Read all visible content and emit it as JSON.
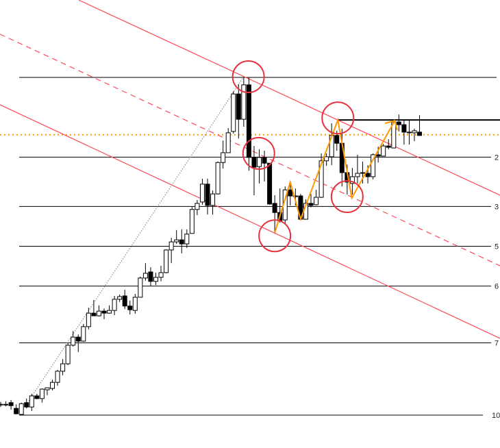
{
  "chart_data": {
    "type": "candlestick",
    "title": "",
    "price_range": [
      0,
      100
    ],
    "grid": false,
    "colors": {
      "bull_body": "#ffffff",
      "bear_body": "#000000",
      "outline": "#000000",
      "channel": "#ff4a5a",
      "zigzag": "#ff9900",
      "support": "#ff9900",
      "circle": "#e8323f",
      "trend": "#888888"
    },
    "candles_ohlc": [
      [
        3.2,
        3.9,
        2.4,
        3.2
      ],
      [
        3.2,
        4.1,
        2.6,
        3.2
      ],
      [
        3.7,
        4.5,
        1.6,
        2.8
      ],
      [
        2.0,
        3.2,
        0.2,
        0.4
      ],
      [
        0.2,
        3.7,
        0,
        3.4
      ],
      [
        3.7,
        4.9,
        2.0,
        2.4
      ],
      [
        2.4,
        6.3,
        1.2,
        5.7
      ],
      [
        5.7,
        6.3,
        4.7,
        4.9
      ],
      [
        4.9,
        7.9,
        3.7,
        7.7
      ],
      [
        7.5,
        8.1,
        5.9,
        8.1
      ],
      [
        7.9,
        10.5,
        7.3,
        9.7
      ],
      [
        9.7,
        13.4,
        8.7,
        13.0
      ],
      [
        13.0,
        16.6,
        11.8,
        15.2
      ],
      [
        15.2,
        21.5,
        14.8,
        20.7
      ],
      [
        20.7,
        24.9,
        20.3,
        23.1
      ],
      [
        23.1,
        23.9,
        18.7,
        21.9
      ],
      [
        21.9,
        27.0,
        21.7,
        26.2
      ],
      [
        26.2,
        31.8,
        25.4,
        30.2
      ],
      [
        30.2,
        34.1,
        29.4,
        29.4
      ],
      [
        29.4,
        32.5,
        29.2,
        30.8
      ],
      [
        30.8,
        31.6,
        28.4,
        30.2
      ],
      [
        30.2,
        32.5,
        30.0,
        31.0
      ],
      [
        31.0,
        35.3,
        29.6,
        34.3
      ],
      [
        34.3,
        35.7,
        33.5,
        35.1
      ],
      [
        35.3,
        37.1,
        31.4,
        32.3
      ],
      [
        32.3,
        33.9,
        29.8,
        31.2
      ],
      [
        31.0,
        35.9,
        30.0,
        34.9
      ],
      [
        34.9,
        41.0,
        34.9,
        40.6
      ],
      [
        40.6,
        45.0,
        39.8,
        42.0
      ],
      [
        42.4,
        43.8,
        38.3,
        39.6
      ],
      [
        39.6,
        42.2,
        38.5,
        40.8
      ],
      [
        40.8,
        44.2,
        39.6,
        42.2
      ],
      [
        42.2,
        49.1,
        42.0,
        48.9
      ],
      [
        48.9,
        52.5,
        45.0,
        51.3
      ],
      [
        51.3,
        54.8,
        50.7,
        51.9
      ],
      [
        51.9,
        55.0,
        47.9,
        50.7
      ],
      [
        50.7,
        55.0,
        49.5,
        53.6
      ],
      [
        53.8,
        61.7,
        53.8,
        60.9
      ],
      [
        60.9,
        63.7,
        59.2,
        62.7
      ],
      [
        63.1,
        70.0,
        62.3,
        68.4
      ],
      [
        68.4,
        70.0,
        59.4,
        62.1
      ],
      [
        62.1,
        66.5,
        59.4,
        65.5
      ],
      [
        65.5,
        75.1,
        65.3,
        74.8
      ],
      [
        74.8,
        81.3,
        73.0,
        77.7
      ],
      [
        77.7,
        85.0,
        77.7,
        83.6
      ],
      [
        84.0,
        95.9,
        83.4,
        95.1
      ],
      [
        95.1,
        98.0,
        81.9,
        87.6
      ],
      [
        87.6,
        100,
        85.4,
        97.8
      ],
      [
        97.8,
        100,
        72.4,
        76.3
      ],
      [
        76.3,
        79.7,
        65.1,
        73.4
      ],
      [
        73.6,
        78.7,
        68.6,
        76.3
      ],
      [
        76.3,
        78.3,
        69.2,
        74.6
      ],
      [
        74.6,
        74.6,
        62.3,
        62.5
      ],
      [
        62.7,
        65.1,
        54.0,
        60.0
      ],
      [
        60.0,
        67.1,
        57.0,
        57.6
      ],
      [
        57.8,
        67.7,
        56.4,
        66.7
      ],
      [
        66.7,
        68.6,
        62.1,
        64.9
      ],
      [
        64.9,
        67.1,
        62.1,
        64.9
      ],
      [
        64.9,
        65.5,
        57.8,
        58.0
      ],
      [
        58.0,
        63.9,
        58.0,
        62.7
      ],
      [
        62.7,
        65.5,
        61.5,
        62.1
      ],
      [
        62.3,
        66.7,
        62.1,
        64.5
      ],
      [
        64.5,
        77.5,
        64.3,
        75.3
      ],
      [
        75.3,
        77.5,
        73.8,
        76.5
      ],
      [
        76.5,
        86.4,
        74.0,
        82.8
      ],
      [
        82.8,
        84.2,
        78.3,
        80.5
      ],
      [
        80.5,
        84.8,
        67.7,
        71.8
      ],
      [
        71.8,
        74.2,
        65.3,
        69.0
      ],
      [
        68.6,
        73.2,
        65.3,
        70.6
      ],
      [
        70.6,
        77.1,
        68.6,
        71.6
      ],
      [
        71.8,
        75.1,
        68.6,
        71.8
      ],
      [
        71.6,
        74.0,
        68.6,
        70.6
      ],
      [
        70.6,
        77.5,
        69.8,
        77.1
      ],
      [
        77.1,
        79.5,
        74.8,
        76.7
      ],
      [
        76.7,
        80.3,
        76.7,
        79.7
      ],
      [
        79.7,
        81.7,
        78.7,
        79.3
      ],
      [
        79.1,
        87.4,
        79.1,
        86.8
      ],
      [
        86.8,
        89.0,
        84.0,
        86.0
      ],
      [
        86.0,
        87.2,
        80.1,
        83.8
      ],
      [
        83.8,
        87.4,
        80.1,
        83.6
      ],
      [
        83.6,
        84.8,
        81.1,
        84.2
      ],
      [
        83.8,
        88.8,
        82.8,
        82.8
      ]
    ],
    "fib_levels": [
      {
        "level": 0,
        "label": ""
      },
      {
        "level": 23.6,
        "label": "2"
      },
      {
        "level": 38.2,
        "label": "3"
      },
      {
        "level": 50,
        "label": "5"
      },
      {
        "level": 61.8,
        "label": "6"
      },
      {
        "level": 78.6,
        "label": "7"
      },
      {
        "level": 100,
        "label": "10"
      }
    ],
    "channel_lines": [
      {
        "style": "solid",
        "points": [
          [
            15.1,
            122.9
          ],
          [
            96.6,
            65.1
          ]
        ]
      },
      {
        "style": "dashed",
        "points": [
          [
            -0.13,
            112.8
          ],
          [
            96.6,
            44.2
          ]
        ]
      },
      {
        "style": "solid",
        "points": [
          [
            -0.13,
            91.9
          ],
          [
            96.6,
            22.7
          ]
        ]
      }
    ],
    "trend_line": {
      "style": "dotted",
      "points": [
        [
          3.6,
          0
        ],
        [
          46.9,
          100
        ]
      ]
    },
    "resistance_line": {
      "price": 87.4,
      "from_index": 65.2
    },
    "support_dotted_line": {
      "price": 83.0
    },
    "zigzag": [
      [
        53.0,
        54.0
      ],
      [
        56.0,
        69.0
      ],
      [
        58.0,
        58.0
      ],
      [
        65.2,
        87.4
      ],
      [
        67.9,
        64.3
      ],
      [
        76.2,
        87.2
      ]
    ],
    "zigzag_tail": [
      [
        74.3,
        86.4
      ],
      [
        76.2,
        87.2
      ],
      [
        76.7,
        84.4
      ]
    ],
    "circled_points": [
      [
        47.9,
        100.2
      ],
      [
        49.9,
        77.5
      ],
      [
        53.0,
        53.1
      ],
      [
        65.2,
        88.0
      ],
      [
        67.0,
        64.7
      ]
    ]
  }
}
